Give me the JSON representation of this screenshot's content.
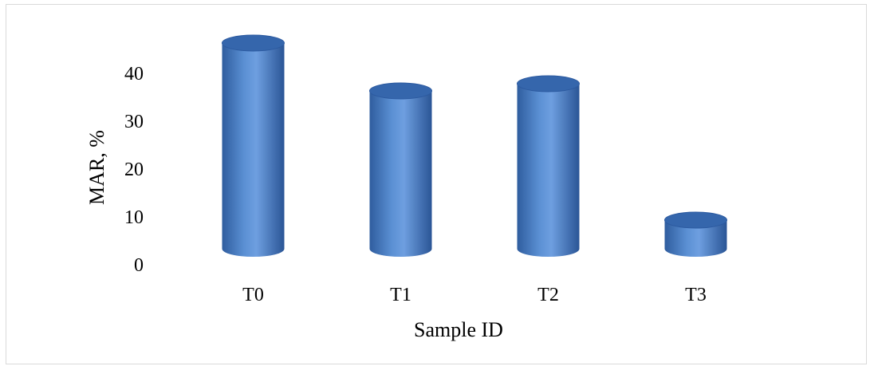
{
  "chart_data": {
    "type": "bar",
    "style": "3d-cylinder",
    "categories": [
      "T0",
      "T1",
      "T2",
      "T3"
    ],
    "values": [
      43,
      33,
      34.5,
      6
    ],
    "xlabel": "Sample ID",
    "ylabel": "MAR, %",
    "yticks": [
      0,
      10,
      20,
      30,
      40
    ],
    "ylim": [
      0,
      45
    ],
    "grid": false,
    "legend": "none",
    "colors": {
      "bar": "#4a7fc4",
      "bar_light": "#7aa7e0",
      "bar_dark": "#2c5aa0",
      "bar_top": "#3566ac",
      "frame": "#d9d9d9"
    }
  }
}
